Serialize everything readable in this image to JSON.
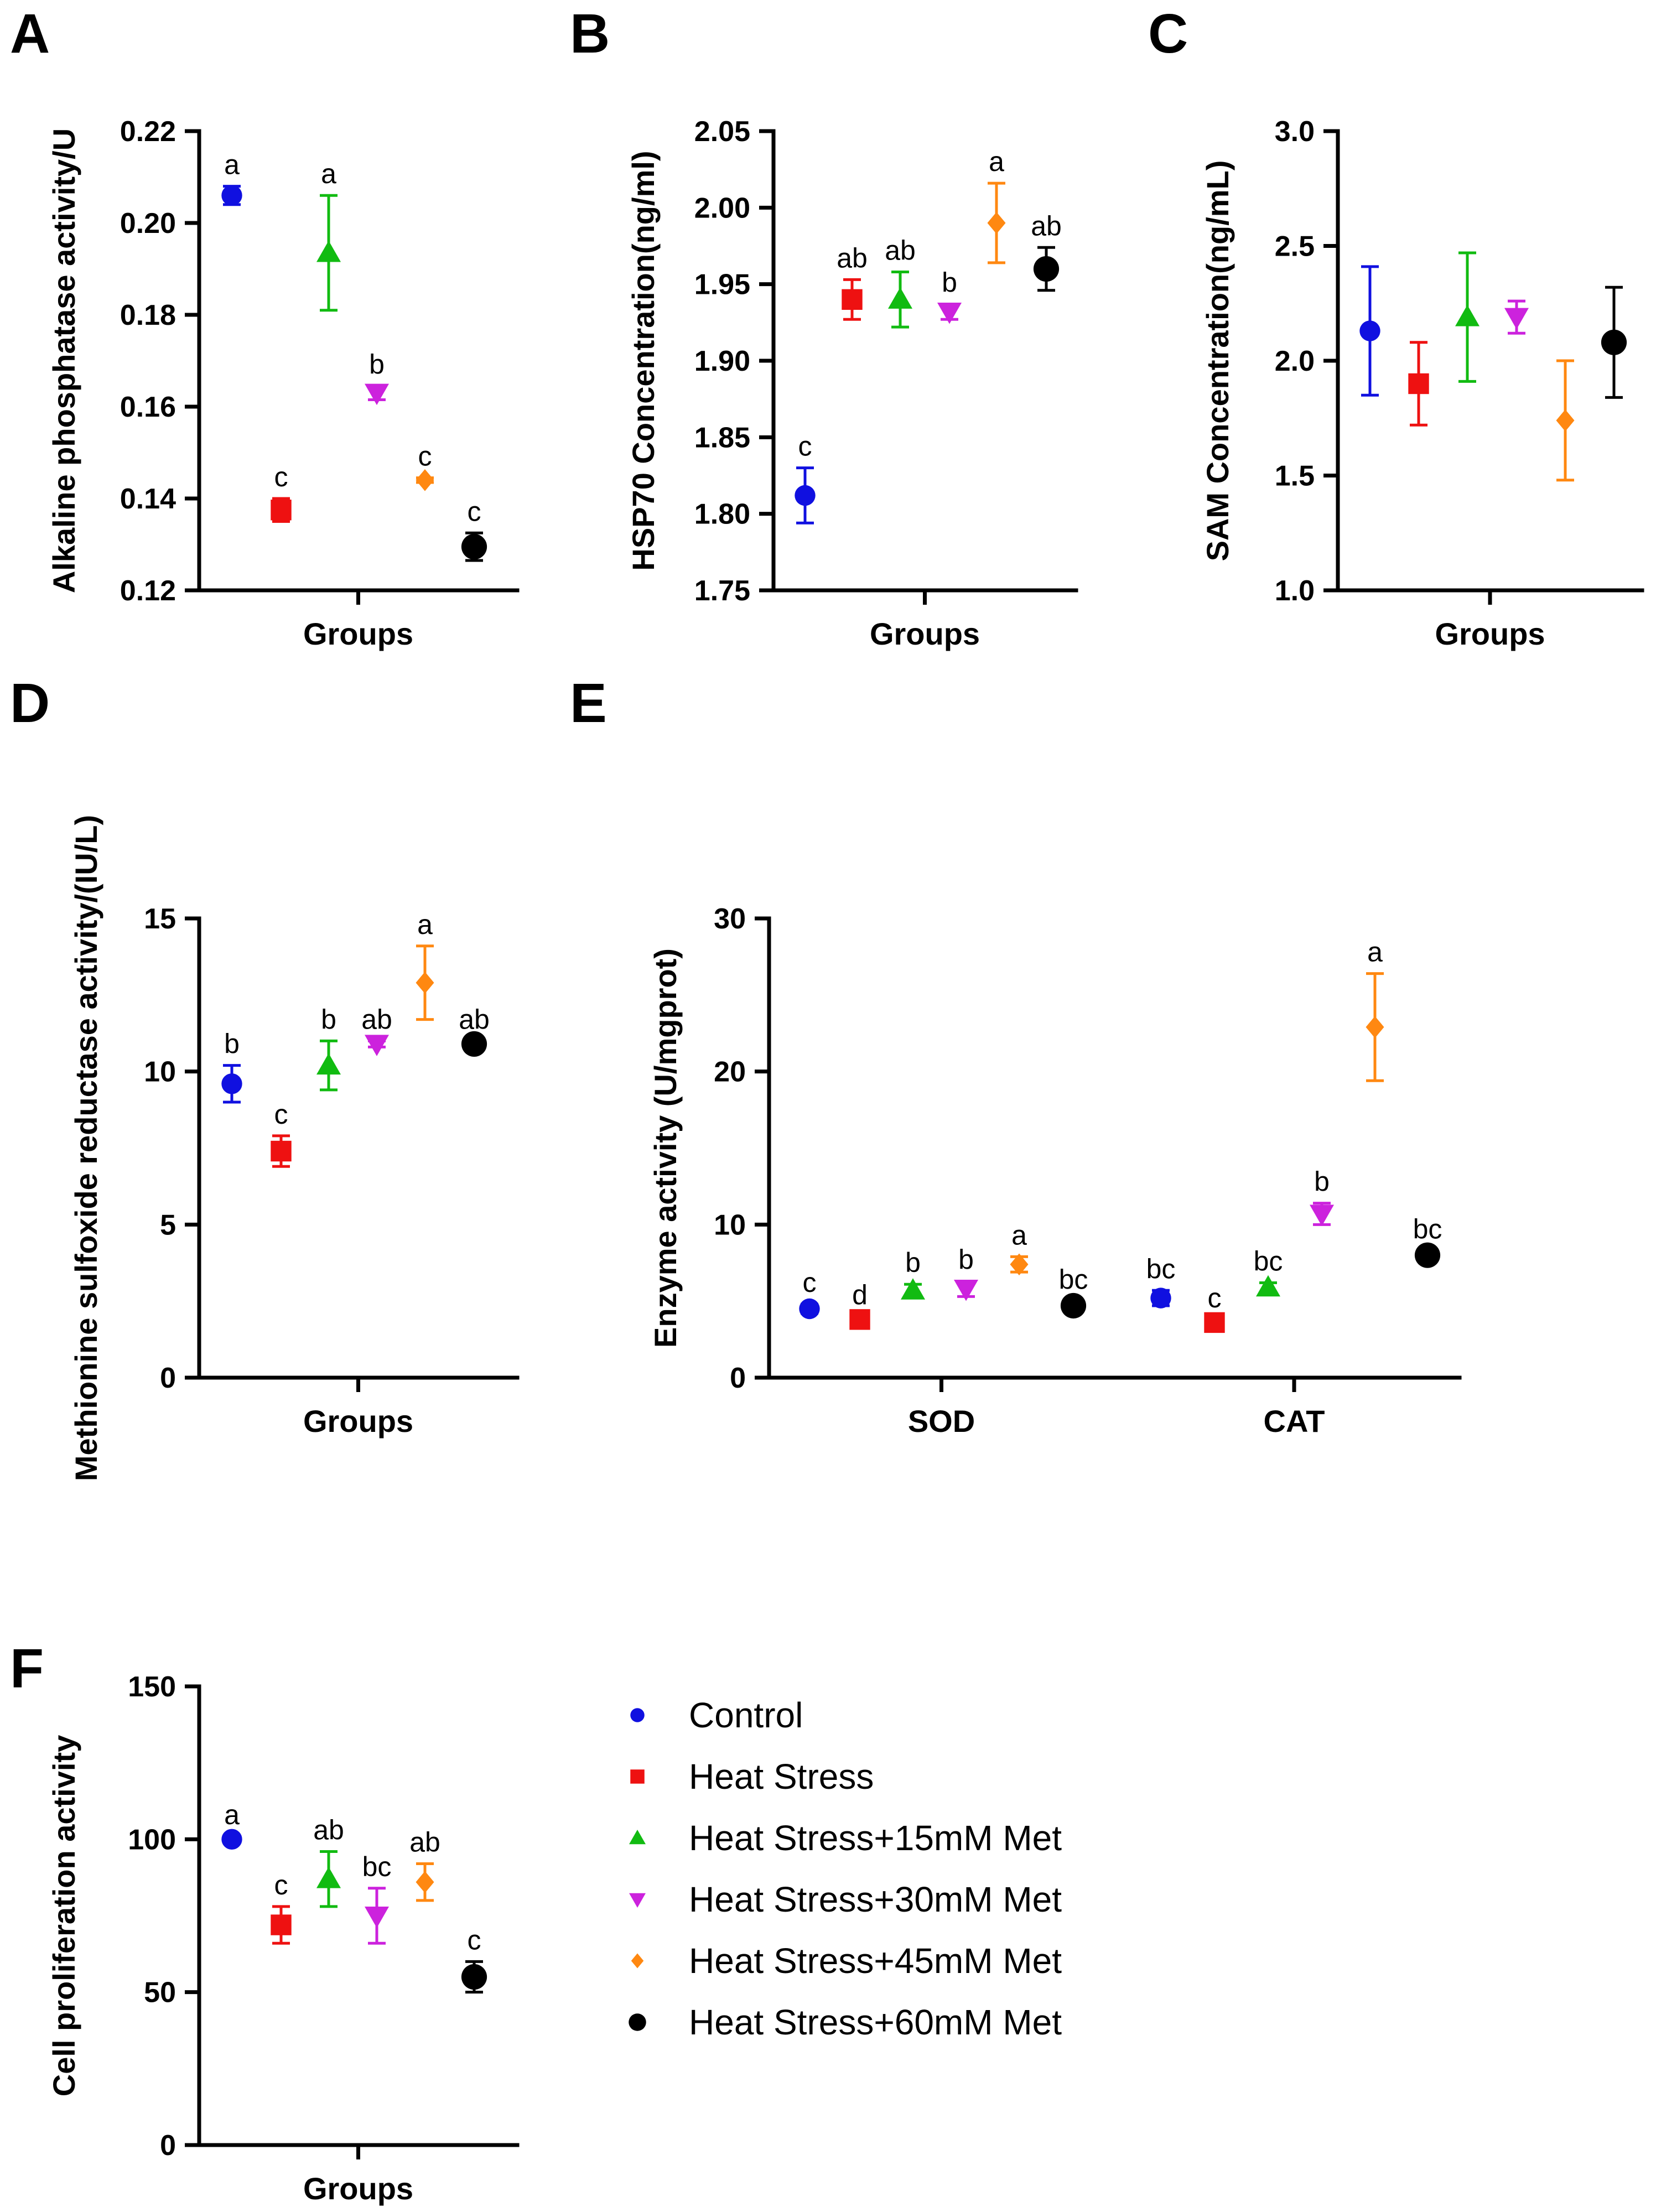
{
  "colors": {
    "Control": "#1010e0",
    "Heat Stress": "#ee1111",
    "Heat Stress+15mM Met": "#11bb11",
    "Heat Stress+30mM Met": "#cc22dd",
    "Heat Stress+45mM Met": "#ff8811",
    "Heat Stress+60mM Met": "#000000"
  },
  "legend": {
    "items": [
      {
        "label": "Control",
        "marker": "circle"
      },
      {
        "label": "Heat Stress",
        "marker": "square"
      },
      {
        "label": "Heat Stress+15mM Met",
        "marker": "triangle-up"
      },
      {
        "label": "Heat Stress+30mM Met",
        "marker": "triangle-down"
      },
      {
        "label": "Heat Stress+45mM Met",
        "marker": "diamond"
      },
      {
        "label": "Heat Stress+60mM Met",
        "marker": "circle-filled"
      }
    ]
  },
  "chart_data": [
    {
      "panel": "A",
      "type": "scatter",
      "title": "",
      "xlabel": "Groups",
      "ylabel": "Alkaline phosphatase activity/U",
      "ylim": [
        0.12,
        0.22
      ],
      "yticks": [
        "0.12",
        "0.14",
        "0.16",
        "0.18",
        "0.20",
        "0.22"
      ],
      "xticks": [],
      "series": [
        {
          "name": "Control",
          "value": 0.206,
          "err": 0.002,
          "sig": "a"
        },
        {
          "name": "Heat Stress",
          "value": 0.1375,
          "err": 0.0025,
          "sig": "c"
        },
        {
          "name": "Heat Stress+15mM Met",
          "value": 0.1935,
          "err": 0.0125,
          "sig": "a"
        },
        {
          "name": "Heat Stress+30mM Met",
          "value": 0.163,
          "err": 0.0015,
          "sig": "b"
        },
        {
          "name": "Heat Stress+45mM Met",
          "value": 0.144,
          "err": 0.0005,
          "sig": "c"
        },
        {
          "name": "Heat Stress+60mM Met",
          "value": 0.1295,
          "err": 0.003,
          "sig": "c"
        }
      ]
    },
    {
      "panel": "B",
      "type": "scatter",
      "title": "",
      "xlabel": "Groups",
      "ylabel": "HSP70 Concentration(ng/ml)",
      "ylim": [
        1.75,
        2.05
      ],
      "yticks": [
        "1.75",
        "1.80",
        "1.85",
        "1.90",
        "1.95",
        "2.00",
        "2.05"
      ],
      "xticks": [],
      "series": [
        {
          "name": "Control",
          "value": 1.812,
          "err": 0.018,
          "sig": "c"
        },
        {
          "name": "Heat Stress",
          "value": 1.94,
          "err": 0.013,
          "sig": "ab"
        },
        {
          "name": "Heat Stress+15mM Met",
          "value": 1.94,
          "err": 0.018,
          "sig": "ab"
        },
        {
          "name": "Heat Stress+30mM Met",
          "value": 1.932,
          "err": 0.005,
          "sig": "b"
        },
        {
          "name": "Heat Stress+45mM Met",
          "value": 1.99,
          "err": 0.026,
          "sig": "a"
        },
        {
          "name": "Heat Stress+60mM Met",
          "value": 1.96,
          "err": 0.014,
          "sig": "ab"
        }
      ]
    },
    {
      "panel": "C",
      "type": "scatter",
      "title": "",
      "xlabel": "Groups",
      "ylabel": "SAM Concentration(ng/mL)",
      "ylim": [
        1.0,
        3.0
      ],
      "yticks": [
        "1.0",
        "1.5",
        "2.0",
        "2.5",
        "3.0"
      ],
      "xticks": [],
      "series": [
        {
          "name": "Control",
          "value": 2.13,
          "err": 0.28,
          "sig": ""
        },
        {
          "name": "Heat Stress",
          "value": 1.9,
          "err": 0.18,
          "sig": ""
        },
        {
          "name": "Heat Stress+15mM Met",
          "value": 2.19,
          "err": 0.28,
          "sig": ""
        },
        {
          "name": "Heat Stress+30mM Met",
          "value": 2.19,
          "err": 0.07,
          "sig": ""
        },
        {
          "name": "Heat Stress+45mM Met",
          "value": 1.74,
          "err": 0.26,
          "sig": ""
        },
        {
          "name": "Heat Stress+60mM Met",
          "value": 2.08,
          "err": 0.24,
          "sig": ""
        }
      ]
    },
    {
      "panel": "D",
      "type": "scatter",
      "title": "",
      "xlabel": "Groups",
      "ylabel": "Methionine sulfoxide reductase activity/(IU/L)",
      "ylim": [
        0,
        15
      ],
      "yticks": [
        "0",
        "5",
        "10",
        "15"
      ],
      "xticks": [],
      "series": [
        {
          "name": "Control",
          "value": 9.6,
          "err": 0.6,
          "sig": "b"
        },
        {
          "name": "Heat Stress",
          "value": 7.4,
          "err": 0.5,
          "sig": "c"
        },
        {
          "name": "Heat Stress+15mM Met",
          "value": 10.2,
          "err": 0.8,
          "sig": "b"
        },
        {
          "name": "Heat Stress+30mM Met",
          "value": 10.9,
          "err": 0.1,
          "sig": "ab"
        },
        {
          "name": "Heat Stress+45mM Met",
          "value": 12.9,
          "err": 1.2,
          "sig": "a"
        },
        {
          "name": "Heat Stress+60mM Met",
          "value": 10.9,
          "err": 0.1,
          "sig": "ab"
        }
      ]
    },
    {
      "panel": "E",
      "type": "scatter",
      "title": "",
      "xlabel": "",
      "ylabel": "Enzyme activity (U/mgprot)",
      "ylim": [
        0,
        30
      ],
      "yticks": [
        "0",
        "10",
        "20",
        "30"
      ],
      "xticks": [
        "SOD",
        "CAT"
      ],
      "groups": [
        {
          "category": "SOD",
          "series": [
            {
              "name": "Control",
              "value": 4.5,
              "err": 0.3,
              "sig": "c"
            },
            {
              "name": "Heat Stress",
              "value": 3.8,
              "err": 0.2,
              "sig": "d"
            },
            {
              "name": "Heat Stress+15mM Met",
              "value": 5.7,
              "err": 0.4,
              "sig": "b"
            },
            {
              "name": "Heat Stress+30mM Met",
              "value": 5.8,
              "err": 0.5,
              "sig": "b"
            },
            {
              "name": "Heat Stress+45mM Met",
              "value": 7.4,
              "err": 0.5,
              "sig": "a"
            },
            {
              "name": "Heat Stress+60mM Met",
              "value": 4.7,
              "err": 0.3,
              "sig": "bc"
            }
          ]
        },
        {
          "category": "CAT",
          "series": [
            {
              "name": "Control",
              "value": 5.2,
              "err": 0.5,
              "sig": "bc"
            },
            {
              "name": "Heat Stress",
              "value": 3.6,
              "err": 0.2,
              "sig": "c"
            },
            {
              "name": "Heat Stress+15mM Met",
              "value": 5.9,
              "err": 0.3,
              "sig": "bc"
            },
            {
              "name": "Heat Stress+30mM Met",
              "value": 10.7,
              "err": 0.7,
              "sig": "b"
            },
            {
              "name": "Heat Stress+45mM Met",
              "value": 22.9,
              "err": 3.5,
              "sig": "a"
            },
            {
              "name": "Heat Stress+60mM Met",
              "value": 8.0,
              "err": 0.3,
              "sig": "bc"
            }
          ]
        }
      ]
    },
    {
      "panel": "F",
      "type": "scatter",
      "title": "",
      "xlabel": "Groups",
      "ylabel": "Cell proliferation activity",
      "ylim": [
        0,
        150
      ],
      "yticks": [
        "0",
        "50",
        "100",
        "150"
      ],
      "xticks": [],
      "series": [
        {
          "name": "Control",
          "value": 100,
          "err": 1,
          "sig": "a"
        },
        {
          "name": "Heat Stress",
          "value": 72,
          "err": 6,
          "sig": "c"
        },
        {
          "name": "Heat Stress+15mM Met",
          "value": 87,
          "err": 9,
          "sig": "ab"
        },
        {
          "name": "Heat Stress+30mM Met",
          "value": 75,
          "err": 9,
          "sig": "bc"
        },
        {
          "name": "Heat Stress+45mM Met",
          "value": 86,
          "err": 6,
          "sig": "ab"
        },
        {
          "name": "Heat Stress+60mM Met",
          "value": 55,
          "err": 5,
          "sig": "c"
        }
      ]
    }
  ]
}
